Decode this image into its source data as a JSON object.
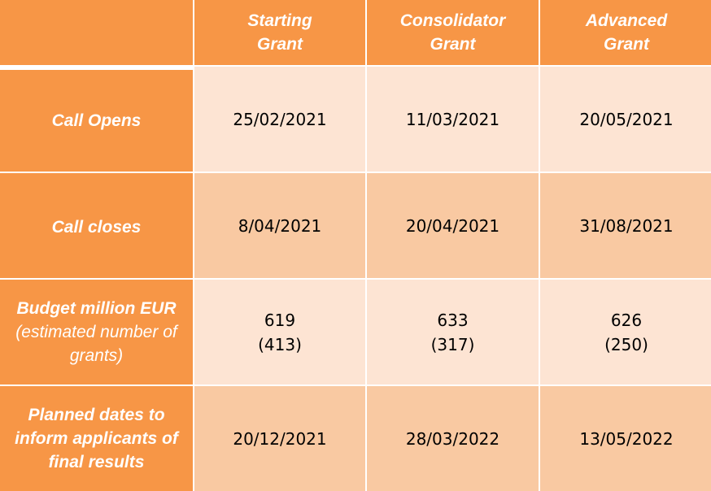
{
  "header": {
    "corner": "",
    "columns": [
      {
        "line1": "Starting",
        "line2": "Grant"
      },
      {
        "line1": "Consolidator",
        "line2": "Grant"
      },
      {
        "line1": "Advanced",
        "line2": "Grant"
      }
    ]
  },
  "rows": [
    {
      "label_lines": [
        "Call Opens"
      ],
      "values": [
        [
          "25/02/2021"
        ],
        [
          "11/03/2021"
        ],
        [
          "20/05/2021"
        ]
      ]
    },
    {
      "label_lines": [
        "Call closes"
      ],
      "values": [
        [
          "8/04/2021"
        ],
        [
          "20/04/2021"
        ],
        [
          "31/08/2021"
        ]
      ]
    },
    {
      "label_lines": [
        "Budget million EUR",
        "(estimated number of",
        "grants)"
      ],
      "values": [
        [
          "619",
          "(413)"
        ],
        [
          "633",
          "(317)"
        ],
        [
          "626",
          "(250)"
        ]
      ]
    },
    {
      "label_lines": [
        "Planned dates to",
        "inform applicants of",
        "final results"
      ],
      "values": [
        [
          "20/12/2021"
        ],
        [
          "28/03/2022"
        ],
        [
          "13/05/2022"
        ]
      ]
    }
  ],
  "colors": {
    "header": "#f79646",
    "row_light": "#fde4d3",
    "row_dark": "#f9c9a2",
    "header_text": "#ffffff"
  }
}
